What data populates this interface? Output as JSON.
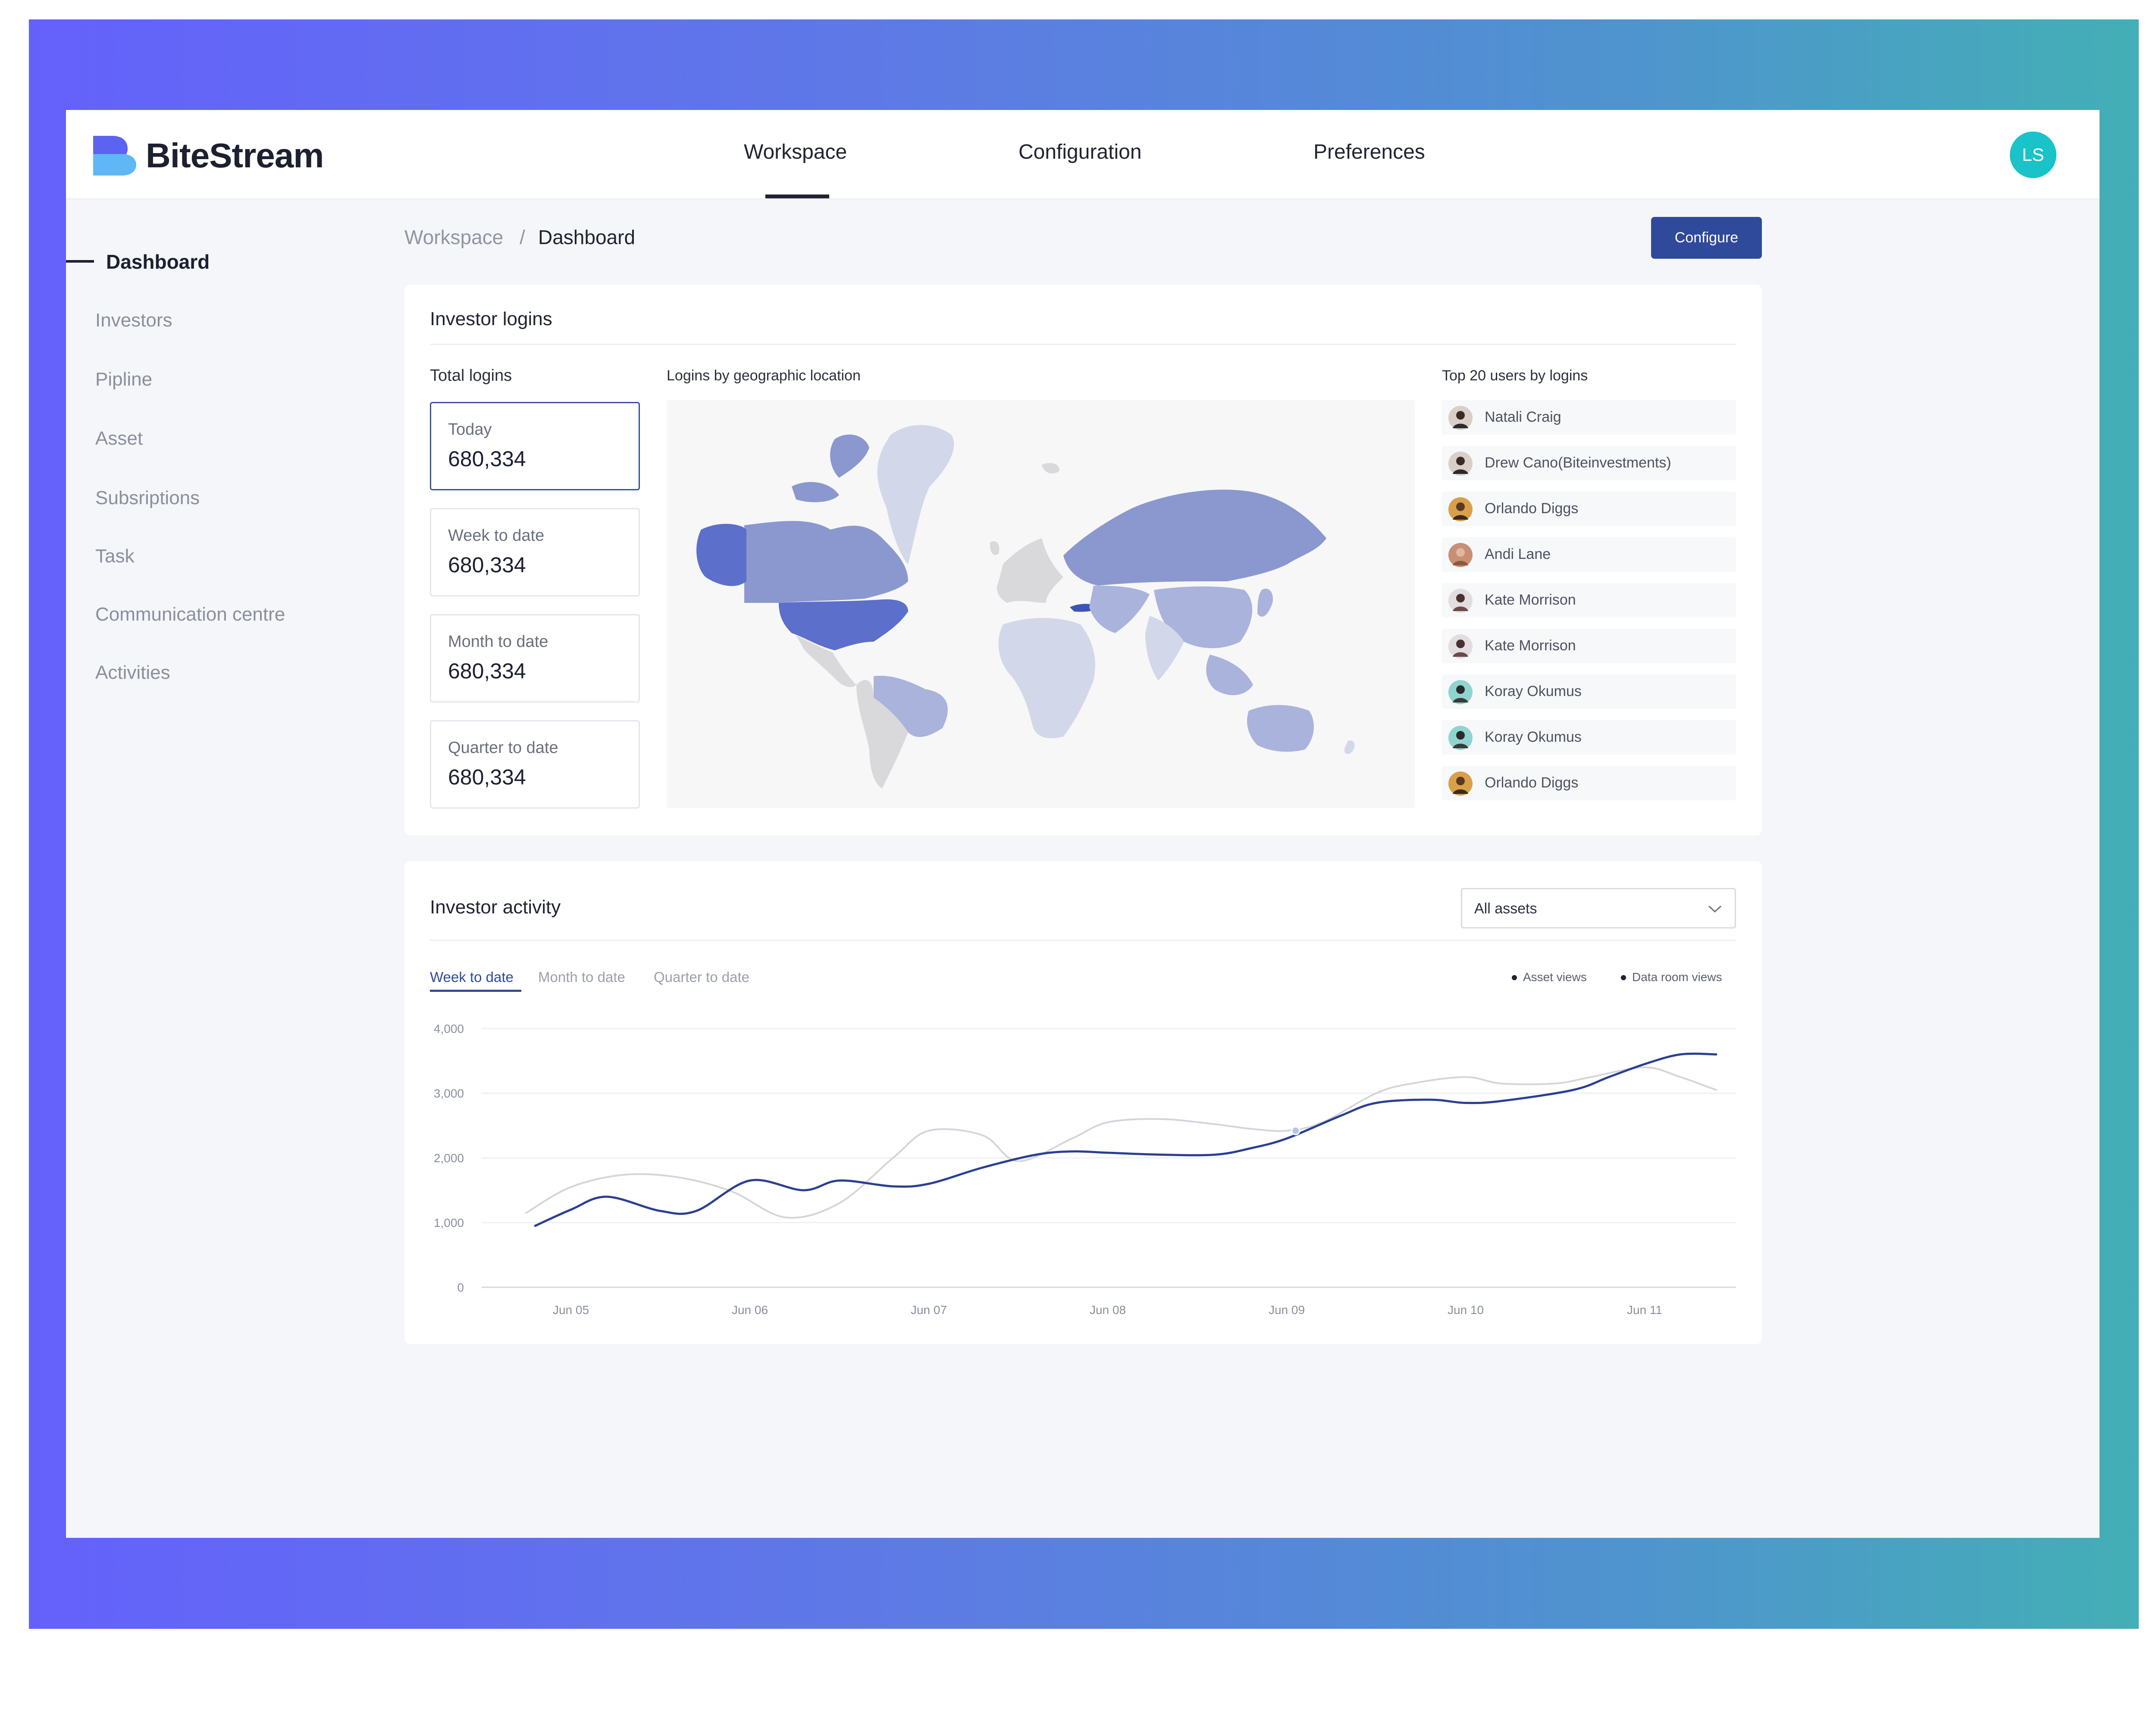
{
  "brand": {
    "name": "BiteStream",
    "logo_icon": "bitestream-logo-icon",
    "logo_colors": [
      "#5b63f0",
      "#5fb7f5"
    ]
  },
  "topnav": {
    "tabs": [
      {
        "label": "Workspace",
        "active": true
      },
      {
        "label": "Configuration",
        "active": false
      },
      {
        "label": "Preferences",
        "active": false
      }
    ],
    "avatar_initials": "LS",
    "avatar_color": "#19c3c9"
  },
  "sidebar": {
    "items": [
      {
        "label": "Dashboard",
        "active": true
      },
      {
        "label": "Investors",
        "active": false
      },
      {
        "label": "Pipline",
        "active": false
      },
      {
        "label": "Asset",
        "active": false
      },
      {
        "label": "Subsriptions",
        "active": false
      },
      {
        "label": "Task",
        "active": false
      },
      {
        "label": "Communication centre",
        "active": false
      },
      {
        "label": "Activities",
        "active": false
      }
    ]
  },
  "breadcrumb": {
    "root": "Workspace",
    "separator": "/",
    "current": "Dashboard"
  },
  "configure_button": "Configure",
  "investor_logins": {
    "title": "Investor logins",
    "total_label": "Total logins",
    "stats": [
      {
        "label": "Today",
        "value": "680,334",
        "selected": true
      },
      {
        "label": "Week to date",
        "value": "680,334",
        "selected": false
      },
      {
        "label": "Month to date",
        "value": "680,334",
        "selected": false
      },
      {
        "label": "Quarter to date",
        "value": "680,334",
        "selected": false
      }
    ],
    "map_label": "Logins by geographic location",
    "map_colors": {
      "highest": "#5b6fcb",
      "high": "#8a98cf",
      "medium": "#a9b3dc",
      "low": "#d2d7e9",
      "none": "#d9d9db"
    },
    "top_users_label": "Top 20 users by logins",
    "top_users": [
      {
        "name": "Natali Craig",
        "avatar_icon": "user-avatar-icon",
        "avatar_bg": "#d9cfc8"
      },
      {
        "name": "Drew Cano(Biteinvestments)",
        "avatar_icon": "user-avatar-icon",
        "avatar_bg": "#d9cfc8"
      },
      {
        "name": "Orlando Diggs",
        "avatar_icon": "user-avatar-icon",
        "avatar_bg": "#d9a04a"
      },
      {
        "name": "Andi Lane",
        "avatar_icon": "user-avatar-icon",
        "avatar_bg": "#c98f75"
      },
      {
        "name": "Kate Morrison",
        "avatar_icon": "user-avatar-icon",
        "avatar_bg": "#e3dde0"
      },
      {
        "name": "Kate Morrison",
        "avatar_icon": "user-avatar-icon",
        "avatar_bg": "#e3dde0"
      },
      {
        "name": "Koray Okumus",
        "avatar_icon": "user-avatar-icon",
        "avatar_bg": "#8fd4cf"
      },
      {
        "name": "Koray Okumus",
        "avatar_icon": "user-avatar-icon",
        "avatar_bg": "#8fd4cf"
      },
      {
        "name": "Orlando Diggs",
        "avatar_icon": "user-avatar-icon",
        "avatar_bg": "#d9a04a"
      }
    ]
  },
  "investor_activity": {
    "title": "Investor activity",
    "asset_select": {
      "value": "All assets",
      "icon": "chevron-down-icon"
    },
    "tabs": [
      {
        "label": "Week to date",
        "active": true
      },
      {
        "label": "Month to date",
        "active": false
      },
      {
        "label": "Quarter to date",
        "active": false
      }
    ]
  },
  "chart_data": {
    "type": "line",
    "categories": [
      "Jun 05",
      "Jun 06",
      "Jun 07",
      "Jun 08",
      "Jun 09",
      "Jun 10",
      "Jun 11"
    ],
    "y_ticks": [
      "4,000",
      "3,000",
      "2,000",
      "1,000",
      "0"
    ],
    "ylim": [
      0,
      4000
    ],
    "grid": true,
    "legend_position": "top-right",
    "series": [
      {
        "name": "Asset views",
        "color": "#2b3f91",
        "x": [
          4.8,
          5.0,
          5.2,
          5.5,
          5.7,
          6.0,
          6.3,
          6.5,
          6.8,
          7.0,
          7.3,
          7.6,
          7.8,
          8.0,
          8.3,
          8.6,
          8.8,
          9.0,
          9.3,
          9.5,
          9.8,
          10.0,
          10.2,
          10.6,
          10.8,
          11.0,
          11.2,
          11.4
        ],
        "y": [
          950,
          1200,
          1400,
          1180,
          1180,
          1650,
          1500,
          1650,
          1560,
          1600,
          1850,
          2050,
          2100,
          2080,
          2050,
          2050,
          2150,
          2300,
          2650,
          2850,
          2900,
          2850,
          2880,
          3050,
          3250,
          3450,
          3600,
          3600
        ]
      },
      {
        "name": "Data room views",
        "color": "#d4d5da",
        "x": [
          4.75,
          5.0,
          5.3,
          5.6,
          5.9,
          6.2,
          6.5,
          6.8,
          7.0,
          7.3,
          7.5,
          7.8,
          8.0,
          8.3,
          8.6,
          8.8,
          9.0,
          9.2,
          9.5,
          9.7,
          10.0,
          10.2,
          10.5,
          10.7,
          11.0,
          11.2,
          11.4
        ],
        "y": [
          1150,
          1550,
          1740,
          1700,
          1480,
          1080,
          1300,
          2000,
          2420,
          2350,
          1950,
          2300,
          2550,
          2600,
          2520,
          2450,
          2420,
          2550,
          3000,
          3150,
          3250,
          3150,
          3150,
          3250,
          3400,
          3250,
          3050
        ]
      }
    ],
    "highlight_point": {
      "series": "Data room views",
      "x": 9.05,
      "y": 2420
    }
  }
}
